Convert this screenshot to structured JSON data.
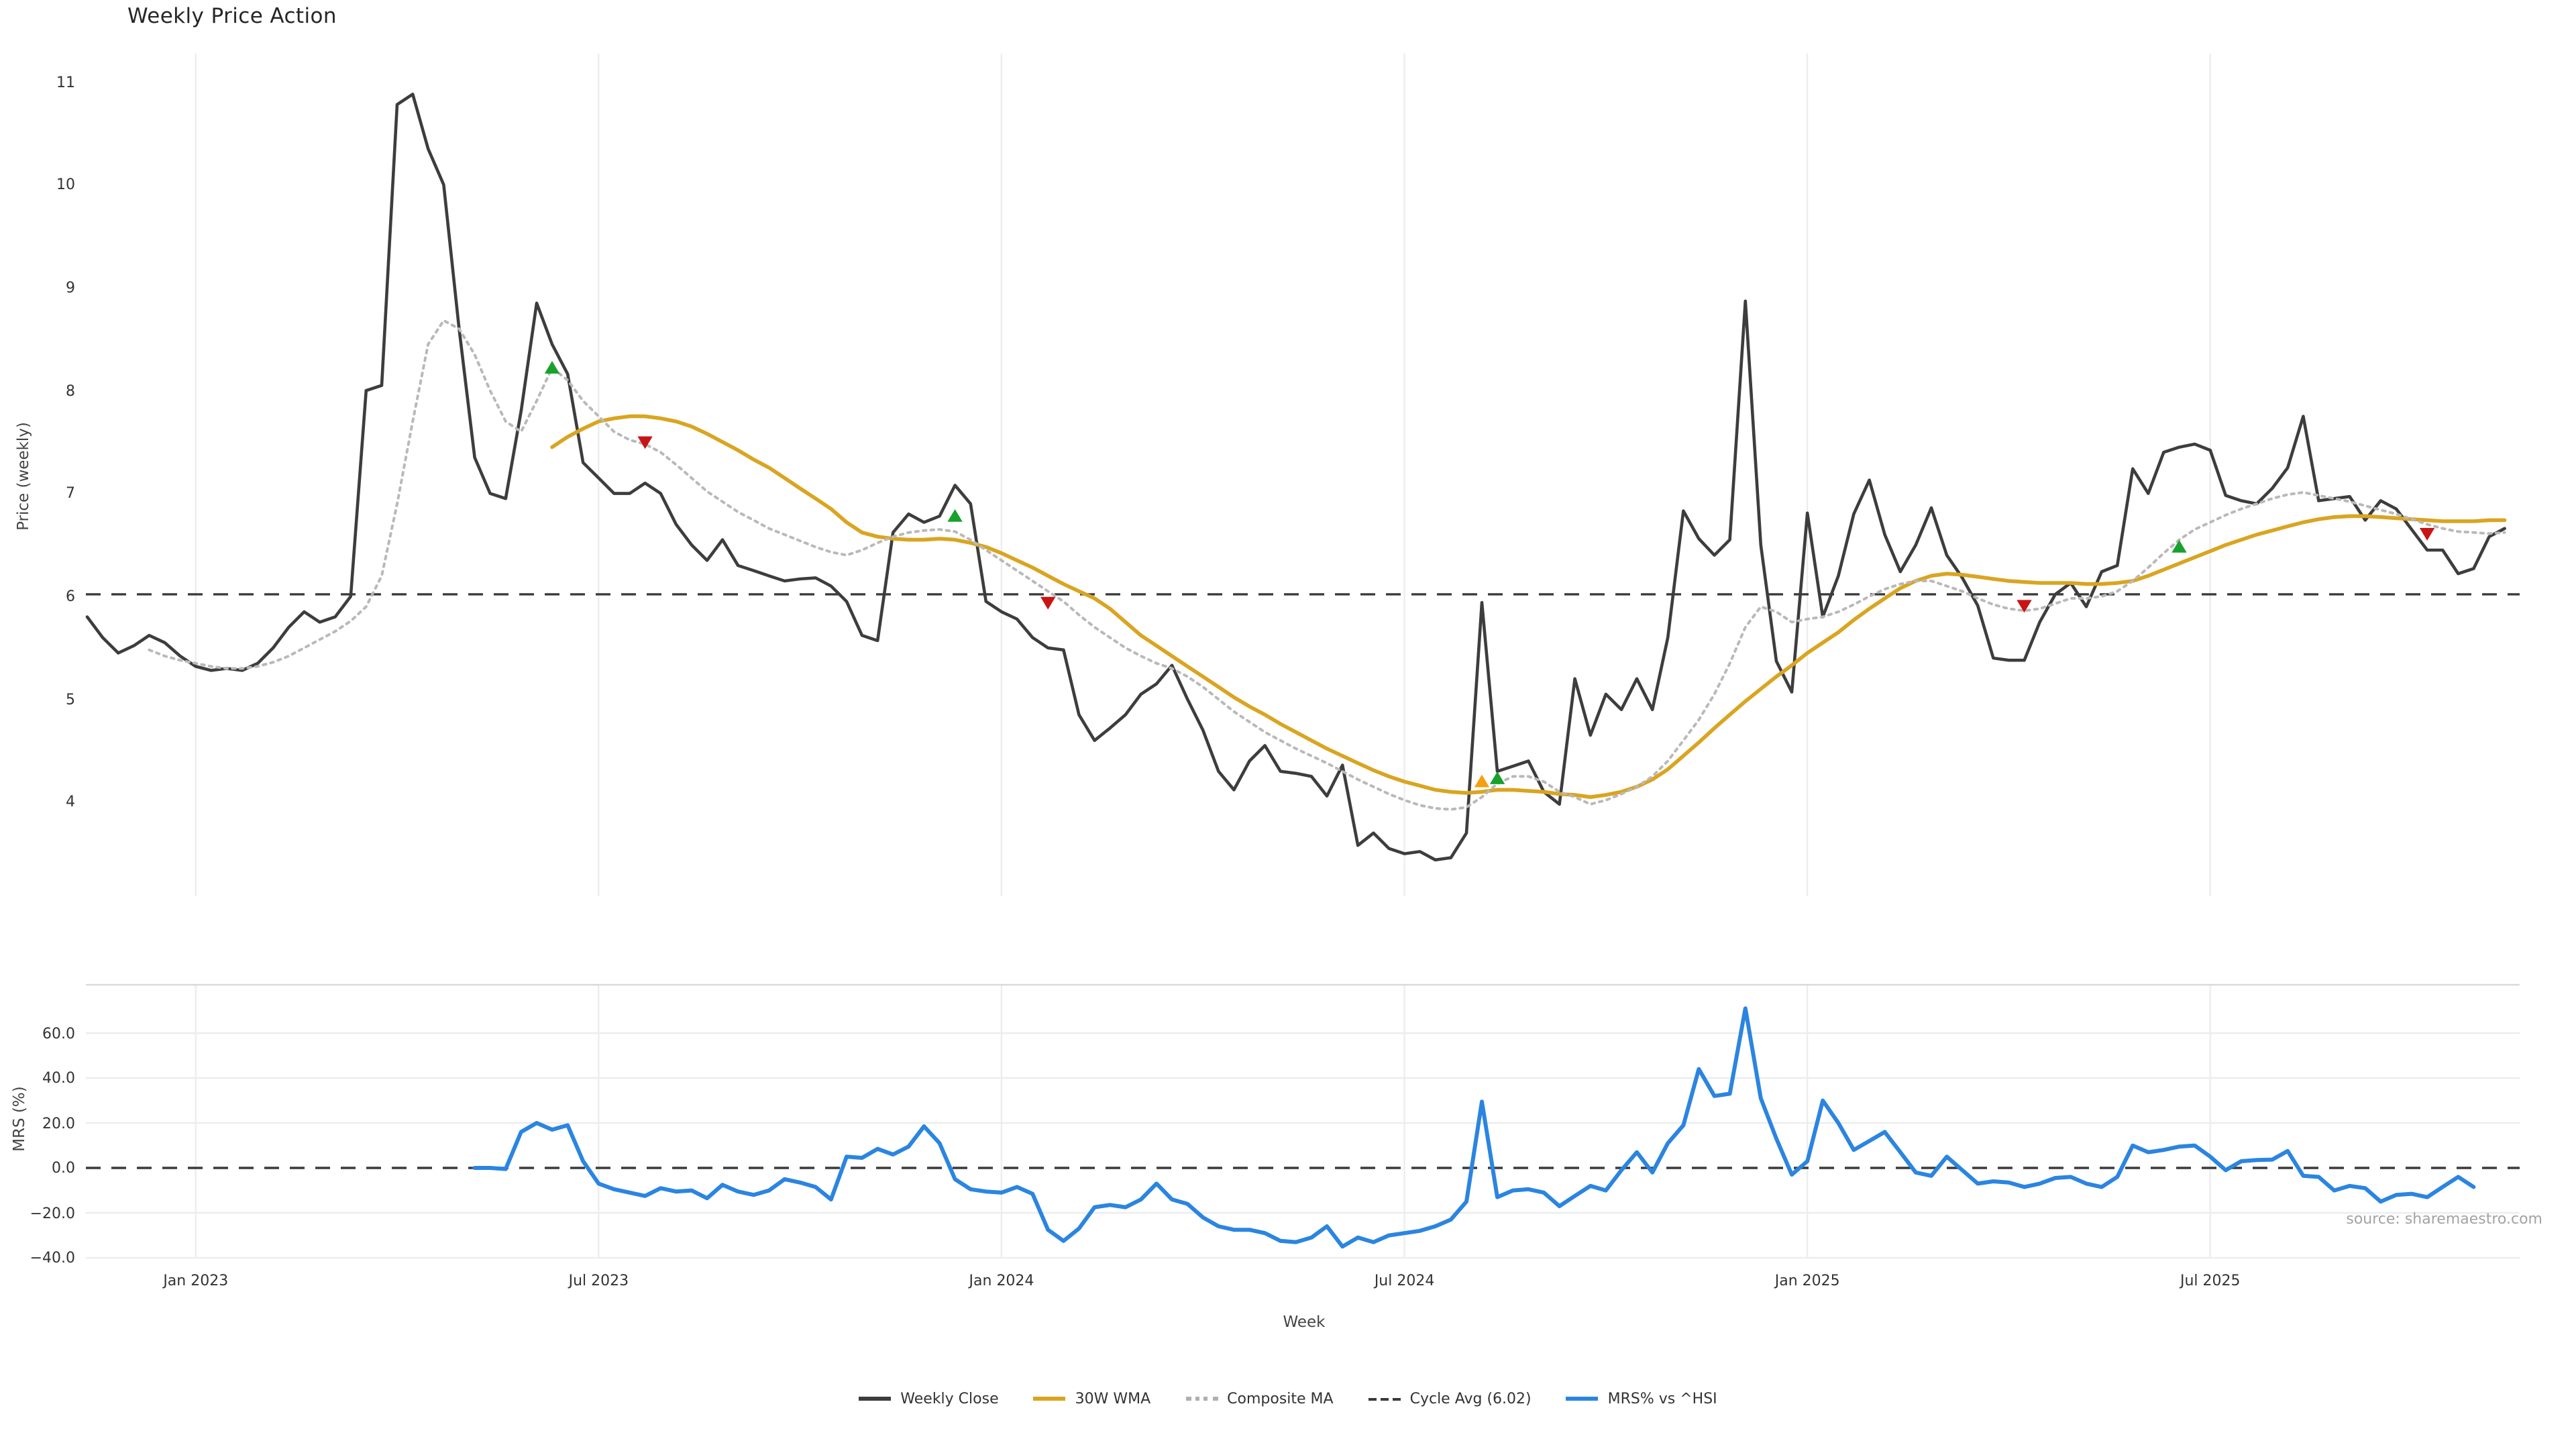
{
  "title": "Weekly Price Action",
  "source_note": "source: sharemaestro.com",
  "colors": {
    "close": "#3d3d3d",
    "wma": "#d9a521",
    "composite": "#b9b9b9",
    "cycle_avg": "#3a3a3a",
    "mrs": "#2b85e0",
    "buy_marker": "#18a12c",
    "sell_marker": "#c81414",
    "wma_marker": "#f59f0f",
    "grid": "#ededed",
    "panel_border": "#d9d9d9"
  },
  "legend": [
    {
      "label": "Weekly Close",
      "type": "solid",
      "color": "#3d3d3d"
    },
    {
      "label": "30W WMA",
      "type": "solid",
      "color": "#d9a521"
    },
    {
      "label": "Composite MA",
      "type": "dotted",
      "color": "#b0b0b0"
    },
    {
      "label": "Cycle Avg (6.02)",
      "type": "dashed",
      "color": "#3a3a3a"
    },
    {
      "label": "MRS% vs ^HSI",
      "type": "solid",
      "color": "#2b85e0"
    }
  ],
  "chart_data": {
    "type": "line",
    "title": "Weekly Price Action",
    "xlabel": "Week",
    "x_unit": "weekly index from mid-Nov 2022",
    "x_ticks": [
      {
        "week": 7,
        "label": "Jan 2023"
      },
      {
        "week": 33,
        "label": "Jul 2023"
      },
      {
        "week": 59,
        "label": "Jan 2024"
      },
      {
        "week": 85,
        "label": "Jul 2024"
      },
      {
        "week": 111,
        "label": "Jan 2025"
      },
      {
        "week": 137,
        "label": "Jul 2025"
      }
    ],
    "price_panel": {
      "ylabel": "Price (weekly)",
      "yticks": [
        11,
        10,
        9,
        8,
        7,
        6,
        5,
        4
      ],
      "ylim": [
        3.1,
        11.3
      ],
      "cycle_avg": 6.02,
      "grid": "vertical-only"
    },
    "mrs_panel": {
      "ylabel": "MRS (%)",
      "yticks": [
        60.0,
        40.0,
        20.0,
        0.0,
        -20.0,
        -40.0
      ],
      "ytick_labels": [
        "60.0",
        "40.0",
        "20.0",
        "0.0",
        "−20.0",
        "−40.0"
      ],
      "ylim": [
        -52,
        81
      ],
      "zero_line": 0.0,
      "grid": "horizontal-and-vertical"
    },
    "series": [
      {
        "name": "Weekly Close",
        "panel": "price",
        "style": "solid",
        "color": "#3d3d3d",
        "week_start": 0,
        "values": [
          5.8,
          5.6,
          5.45,
          5.52,
          5.62,
          5.55,
          5.42,
          5.32,
          5.28,
          5.3,
          5.28,
          5.35,
          5.5,
          5.7,
          5.85,
          5.75,
          5.8,
          6.0,
          8.0,
          8.05,
          10.78,
          10.88,
          10.35,
          10.0,
          8.6,
          7.35,
          7.0,
          6.95,
          7.8,
          8.85,
          8.45,
          8.16,
          7.3,
          7.15,
          7.0,
          7.0,
          7.1,
          7.0,
          6.7,
          6.5,
          6.35,
          6.55,
          6.3,
          6.25,
          6.2,
          6.15,
          6.17,
          6.18,
          6.1,
          5.95,
          5.62,
          5.57,
          6.62,
          6.8,
          6.72,
          6.78,
          7.08,
          6.9,
          5.95,
          5.85,
          5.78,
          5.6,
          5.5,
          5.48,
          4.85,
          4.6,
          4.72,
          4.85,
          5.05,
          5.15,
          5.33,
          5.0,
          4.7,
          4.3,
          4.12,
          4.4,
          4.55,
          4.3,
          4.28,
          4.25,
          4.06,
          4.36,
          3.58,
          3.7,
          3.55,
          3.5,
          3.52,
          3.44,
          3.46,
          3.7,
          5.94,
          4.3,
          4.35,
          4.4,
          4.1,
          3.98,
          5.2,
          4.65,
          5.05,
          4.9,
          5.2,
          4.9,
          5.6,
          6.83,
          6.56,
          6.4,
          6.55,
          8.87,
          6.5,
          5.37,
          5.07,
          6.81,
          5.8,
          6.2,
          6.8,
          7.13,
          6.6,
          6.24,
          6.5,
          6.86,
          6.4,
          6.18,
          5.91,
          5.4,
          5.38,
          5.38,
          5.75,
          6.02,
          6.13,
          5.9,
          6.24,
          6.3,
          7.24,
          7.0,
          7.4,
          7.45,
          7.48,
          7.42,
          6.98,
          6.93,
          6.9,
          7.05,
          7.25,
          7.75,
          6.93,
          6.95,
          6.97,
          6.74,
          6.93,
          6.85,
          6.65,
          6.45,
          6.45,
          6.22,
          6.27,
          6.58,
          6.66
        ]
      },
      {
        "name": "30W WMA",
        "panel": "price",
        "style": "solid",
        "color": "#d9a521",
        "week_start": 30,
        "values": [
          7.45,
          7.55,
          7.63,
          7.7,
          7.73,
          7.75,
          7.75,
          7.73,
          7.7,
          7.65,
          7.58,
          7.5,
          7.42,
          7.33,
          7.25,
          7.15,
          7.05,
          6.95,
          6.85,
          6.72,
          6.62,
          6.58,
          6.56,
          6.55,
          6.55,
          6.56,
          6.55,
          6.52,
          6.48,
          6.42,
          6.35,
          6.28,
          6.2,
          6.12,
          6.05,
          5.98,
          5.88,
          5.75,
          5.62,
          5.52,
          5.42,
          5.32,
          5.22,
          5.12,
          5.02,
          4.93,
          4.85,
          4.76,
          4.68,
          4.6,
          4.52,
          4.45,
          4.38,
          4.31,
          4.25,
          4.2,
          4.16,
          4.12,
          4.1,
          4.09,
          4.1,
          4.12,
          4.12,
          4.11,
          4.1,
          4.08,
          4.07,
          4.05,
          4.07,
          4.1,
          4.15,
          4.22,
          4.32,
          4.45,
          4.58,
          4.72,
          4.85,
          4.98,
          5.1,
          5.22,
          5.33,
          5.45,
          5.55,
          5.65,
          5.77,
          5.88,
          5.98,
          6.08,
          6.15,
          6.2,
          6.22,
          6.21,
          6.19,
          6.17,
          6.15,
          6.14,
          6.13,
          6.13,
          6.13,
          6.12,
          6.12,
          6.13,
          6.15,
          6.2,
          6.26,
          6.32,
          6.38,
          6.44,
          6.5,
          6.55,
          6.6,
          6.64,
          6.68,
          6.72,
          6.75,
          6.77,
          6.78,
          6.78,
          6.77,
          6.76,
          6.75,
          6.74,
          6.73,
          6.73,
          6.73,
          6.74,
          6.74
        ]
      },
      {
        "name": "Composite MA",
        "panel": "price",
        "style": "dotted",
        "color": "#b9b9b9",
        "week_start": 4,
        "values": [
          5.48,
          5.42,
          5.38,
          5.35,
          5.32,
          5.3,
          5.3,
          5.32,
          5.36,
          5.42,
          5.5,
          5.58,
          5.66,
          5.76,
          5.9,
          6.2,
          6.9,
          7.7,
          8.45,
          8.68,
          8.6,
          8.35,
          8.0,
          7.7,
          7.6,
          7.9,
          8.22,
          8.1,
          7.9,
          7.75,
          7.6,
          7.52,
          7.48,
          7.4,
          7.28,
          7.15,
          7.02,
          6.92,
          6.82,
          6.74,
          6.66,
          6.6,
          6.54,
          6.48,
          6.43,
          6.4,
          6.45,
          6.52,
          6.58,
          6.62,
          6.64,
          6.65,
          6.63,
          6.55,
          6.45,
          6.35,
          6.25,
          6.15,
          6.05,
          5.95,
          5.82,
          5.7,
          5.6,
          5.5,
          5.42,
          5.35,
          5.3,
          5.22,
          5.12,
          5.0,
          4.88,
          4.78,
          4.68,
          4.6,
          4.52,
          4.45,
          4.38,
          4.3,
          4.22,
          4.15,
          4.08,
          4.02,
          3.97,
          3.94,
          3.93,
          3.95,
          4.05,
          4.18,
          4.25,
          4.25,
          4.2,
          4.1,
          4.05,
          3.98,
          4.02,
          4.08,
          4.15,
          4.25,
          4.4,
          4.6,
          4.8,
          5.05,
          5.35,
          5.7,
          5.9,
          5.85,
          5.75,
          5.78,
          5.8,
          5.85,
          5.92,
          6.0,
          6.07,
          6.12,
          6.15,
          6.15,
          6.1,
          6.05,
          5.98,
          5.92,
          5.88,
          5.86,
          5.88,
          5.93,
          5.98,
          5.98,
          6.0,
          6.05,
          6.15,
          6.28,
          6.42,
          6.55,
          6.65,
          6.72,
          6.79,
          6.85,
          6.9,
          6.95,
          6.99,
          7.01,
          6.98,
          6.95,
          6.92,
          6.88,
          6.84,
          6.8,
          6.75,
          6.7,
          6.66,
          6.63,
          6.62,
          6.61,
          6.62
        ]
      },
      {
        "name": "MRS% vs ^HSI",
        "panel": "mrs",
        "style": "solid",
        "color": "#2b85e0",
        "week_start": 25,
        "values": [
          0,
          0,
          -0.5,
          16,
          20,
          17,
          19,
          3,
          -7,
          -9.5,
          -11,
          -12.5,
          -9,
          -10.5,
          -10,
          -13.5,
          -7.5,
          -10.5,
          -12,
          -10,
          -5,
          -6.5,
          -8.5,
          -14,
          5,
          4.5,
          8.5,
          6,
          9.5,
          18.5,
          11,
          -5,
          -9.5,
          -10.5,
          -11,
          -8.5,
          -11.5,
          -27.5,
          -32.5,
          -27,
          -17.5,
          -16.5,
          -17.5,
          -14,
          -7,
          -14,
          -16,
          -22,
          -26,
          -27.5,
          -27.5,
          -29,
          -32.5,
          -33,
          -31,
          -26,
          -35,
          -31,
          -33,
          -30,
          -29,
          -28,
          -26,
          -23,
          -15,
          29.5,
          -13,
          -10,
          -9.5,
          -11,
          -17,
          -12.5,
          -8,
          -10,
          -1,
          7,
          -2,
          11,
          19,
          44,
          32,
          33,
          71,
          31,
          13,
          -3,
          3,
          30,
          20,
          8,
          12,
          16,
          7,
          -2,
          -3.5,
          5,
          -1,
          -7,
          -6,
          -6.5,
          -8.5,
          -7,
          -4.5,
          -4,
          -7,
          -8.5,
          -4,
          10,
          7,
          8,
          9.5,
          10,
          5,
          -1,
          3,
          3.5,
          3.7,
          7.5,
          -3.5,
          -4,
          -10,
          -8,
          -9,
          -15,
          -12,
          -11.5,
          -13,
          -8.5,
          -4,
          -8.5
        ]
      }
    ],
    "markers": {
      "buy_green_up": [
        {
          "week": 30,
          "price": 8.22
        },
        {
          "week": 56,
          "price": 6.78
        },
        {
          "week": 91,
          "price": 4.23
        },
        {
          "week": 135,
          "price": 6.48
        }
      ],
      "sell_red_down": [
        {
          "week": 36,
          "price": 7.5
        },
        {
          "week": 62,
          "price": 5.94
        },
        {
          "week": 125,
          "price": 5.91
        },
        {
          "week": 151,
          "price": 6.61
        }
      ],
      "wma_orange_up": [
        {
          "week": 90,
          "price": 4.2
        }
      ]
    }
  }
}
